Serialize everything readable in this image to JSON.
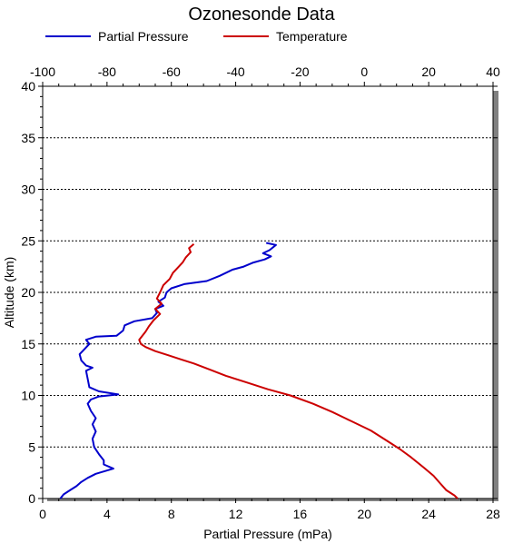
{
  "chart_data": {
    "type": "line",
    "title": "Ozonesonde Data",
    "xlabel": "Partial Pressure (mPa)",
    "ylabel": "Altitude (km)",
    "xlim": [
      0,
      28
    ],
    "xticks": [
      "0",
      "4",
      "8",
      "12",
      "16",
      "20",
      "24",
      "28"
    ],
    "x2lim": [
      -100,
      40
    ],
    "x2ticks": [
      "-100",
      "-80",
      "-60",
      "-40",
      "-20",
      "0",
      "20",
      "40"
    ],
    "ylim": [
      0,
      40
    ],
    "yticks": [
      "0",
      "5",
      "10",
      "15",
      "20",
      "25",
      "30",
      "35",
      "40"
    ],
    "grid": "horizontal dotted",
    "legend": "top",
    "series": [
      {
        "name": "Partial Pressure",
        "color": "#0000cc",
        "axis": "bottom",
        "points": [
          [
            1.1,
            0.0
          ],
          [
            1.3,
            0.4
          ],
          [
            1.7,
            0.8
          ],
          [
            2.1,
            1.2
          ],
          [
            2.4,
            1.6
          ],
          [
            2.8,
            2.0
          ],
          [
            3.3,
            2.4
          ],
          [
            4.4,
            2.9
          ],
          [
            3.8,
            3.3
          ],
          [
            3.8,
            3.7
          ],
          [
            3.5,
            4.3
          ],
          [
            3.2,
            5.0
          ],
          [
            3.1,
            5.8
          ],
          [
            3.3,
            6.5
          ],
          [
            3.1,
            7.2
          ],
          [
            3.3,
            7.8
          ],
          [
            3.0,
            8.5
          ],
          [
            2.8,
            9.2
          ],
          [
            3.0,
            9.6
          ],
          [
            3.5,
            9.9
          ],
          [
            4.7,
            10.1
          ],
          [
            3.5,
            10.4
          ],
          [
            2.9,
            10.8
          ],
          [
            2.8,
            11.6
          ],
          [
            2.7,
            12.4
          ],
          [
            3.1,
            12.7
          ],
          [
            2.7,
            12.9
          ],
          [
            2.4,
            13.4
          ],
          [
            2.3,
            14.0
          ],
          [
            2.6,
            14.5
          ],
          [
            2.9,
            15.0
          ],
          [
            2.7,
            15.4
          ],
          [
            3.3,
            15.7
          ],
          [
            4.6,
            15.8
          ],
          [
            5.0,
            16.3
          ],
          [
            5.1,
            16.8
          ],
          [
            5.7,
            17.2
          ],
          [
            6.8,
            17.5
          ],
          [
            7.1,
            18.0
          ],
          [
            7.0,
            18.4
          ],
          [
            7.5,
            18.7
          ],
          [
            7.2,
            19.1
          ],
          [
            7.6,
            19.5
          ],
          [
            7.7,
            20.0
          ],
          [
            8.0,
            20.4
          ],
          [
            8.8,
            20.8
          ],
          [
            10.2,
            21.1
          ],
          [
            11.0,
            21.6
          ],
          [
            11.8,
            22.2
          ],
          [
            12.5,
            22.5
          ],
          [
            13.1,
            22.9
          ],
          [
            13.8,
            23.2
          ],
          [
            14.2,
            23.5
          ],
          [
            13.7,
            23.8
          ],
          [
            14.1,
            24.1
          ],
          [
            14.5,
            24.6
          ],
          [
            13.9,
            24.8
          ]
        ]
      },
      {
        "name": "Temperature",
        "color": "#cc0000",
        "axis": "top",
        "points": [
          [
            29.0,
            0.0
          ],
          [
            28.0,
            0.3
          ],
          [
            25.5,
            0.8
          ],
          [
            23.5,
            1.5
          ],
          [
            21.5,
            2.2
          ],
          [
            18.5,
            3.0
          ],
          [
            14.5,
            4.0
          ],
          [
            11.0,
            4.8
          ],
          [
            7.0,
            5.6
          ],
          [
            2.0,
            6.6
          ],
          [
            -4.0,
            7.5
          ],
          [
            -10.0,
            8.4
          ],
          [
            -16.0,
            9.2
          ],
          [
            -23.0,
            10.0
          ],
          [
            -30.0,
            10.6
          ],
          [
            -37.0,
            11.3
          ],
          [
            -43.0,
            11.9
          ],
          [
            -48.0,
            12.5
          ],
          [
            -53.0,
            13.1
          ],
          [
            -57.0,
            13.5
          ],
          [
            -61.0,
            13.9
          ],
          [
            -65.0,
            14.3
          ],
          [
            -68.0,
            14.7
          ],
          [
            -69.5,
            15.0
          ],
          [
            -70.0,
            15.4
          ],
          [
            -69.0,
            15.8
          ],
          [
            -68.0,
            16.2
          ],
          [
            -67.0,
            16.7
          ],
          [
            -65.5,
            17.3
          ],
          [
            -63.5,
            17.9
          ],
          [
            -65.0,
            18.4
          ],
          [
            -63.0,
            18.9
          ],
          [
            -64.5,
            19.4
          ],
          [
            -63.5,
            20.0
          ],
          [
            -62.5,
            20.7
          ],
          [
            -60.5,
            21.3
          ],
          [
            -59.5,
            21.9
          ],
          [
            -58.0,
            22.4
          ],
          [
            -56.5,
            22.9
          ],
          [
            -55.5,
            23.4
          ],
          [
            -54.0,
            23.9
          ],
          [
            -54.5,
            24.3
          ],
          [
            -53.0,
            24.7
          ]
        ]
      }
    ]
  }
}
